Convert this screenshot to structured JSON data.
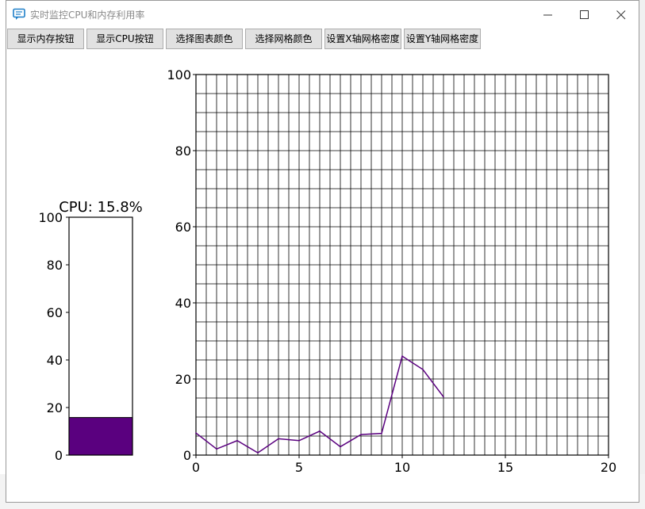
{
  "window": {
    "title": "实时监控CPU和内存利用率",
    "icon": "monitor-chat-icon"
  },
  "controls": {
    "minimize_icon": "minimize-icon",
    "maximize_icon": "maximize-icon",
    "close_icon": "close-icon"
  },
  "toolbar": {
    "buttons": [
      {
        "label": "显示内存按钮"
      },
      {
        "label": "显示CPU按钮"
      },
      {
        "label": "选择图表颜色"
      },
      {
        "label": "选择网格颜色"
      },
      {
        "label": "设置X轴网格密度"
      },
      {
        "label": "设置Y轴网格密度"
      }
    ]
  },
  "colors": {
    "accent": "#5a007f",
    "title_icon": "#1e7fc8",
    "grid": "#000000"
  },
  "chart_data": [
    {
      "type": "bar",
      "title": "CPU: 15.8%",
      "values": [
        15.8
      ],
      "ylim": [
        0,
        100
      ],
      "yticks": [
        0,
        20,
        40,
        60,
        80,
        100
      ],
      "color": "#5a007f"
    },
    {
      "type": "line",
      "x": [
        0,
        1,
        2,
        3,
        4,
        5,
        6,
        7,
        8,
        9,
        10,
        11,
        12
      ],
      "y": [
        5.8,
        1.6,
        3.8,
        0.6,
        4.3,
        3.8,
        6.3,
        2.2,
        5.4,
        5.7,
        26.0,
        22.5,
        15.3
      ],
      "xlim": [
        0,
        20
      ],
      "ylim": [
        0,
        100
      ],
      "xticks": [
        0,
        5,
        10,
        15,
        20
      ],
      "yticks": [
        0,
        20,
        40,
        60,
        80,
        100
      ],
      "grid": true,
      "x_grid_count": 40,
      "y_grid_count": 20,
      "color": "#5a007f"
    }
  ]
}
